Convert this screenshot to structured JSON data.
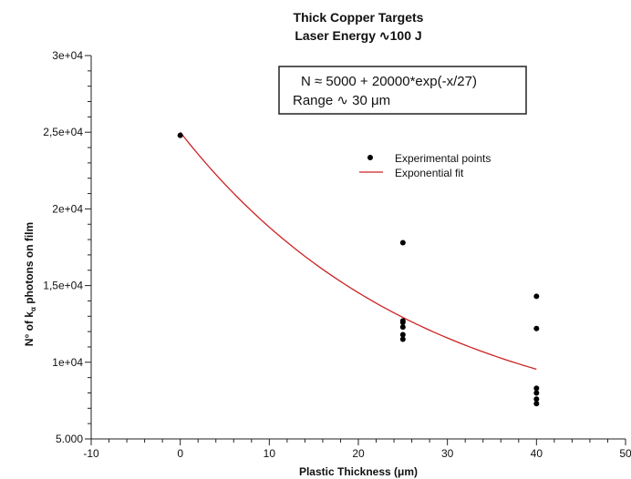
{
  "chart_data": {
    "type": "scatter",
    "title": "Thick Copper Targets",
    "subtitle": "Laser Energy ∿100 J",
    "xlabel": "Plastic Thickness (μm)",
    "ylabel_prefix": "N° of k",
    "ylabel_sub": "α",
    "ylabel_suffix": " photons on film",
    "xlim": [
      -10,
      50
    ],
    "ylim": [
      5000,
      30000
    ],
    "x_ticks": [
      -10,
      0,
      10,
      20,
      30,
      40,
      50
    ],
    "x_tick_labels": [
      "-10",
      "0",
      "10",
      "20",
      "30",
      "40",
      "50"
    ],
    "x_minor_step": 2,
    "y_ticks": [
      5000,
      10000,
      15000,
      20000,
      25000,
      30000
    ],
    "y_tick_labels": [
      "5.000",
      "1e+04",
      "1,5e+04",
      "2e+04",
      "2,5e+04",
      "3e+04"
    ],
    "y_minor_step": 1000,
    "grid": false,
    "legend_position": "top-right",
    "annotation": {
      "line1": "N ≈ 5000 + 20000*exp(-x/27)",
      "line2": "Range ∿ 30 μm"
    },
    "series": [
      {
        "name": "Experimental points",
        "kind": "scatter",
        "color": "#000000",
        "points": [
          [
            0,
            24800
          ],
          [
            25,
            17800
          ],
          [
            25,
            12700
          ],
          [
            25,
            12600
          ],
          [
            25,
            12300
          ],
          [
            25,
            11800
          ],
          [
            25,
            11500
          ],
          [
            40,
            14300
          ],
          [
            40,
            12200
          ],
          [
            40,
            8300
          ],
          [
            40,
            8000
          ],
          [
            40,
            7600
          ],
          [
            40,
            7300
          ]
        ]
      },
      {
        "name": "Exponential fit",
        "kind": "line",
        "color": "#cc2222",
        "model": {
          "a": 5000,
          "b": 20000,
          "c": 27
        },
        "x_range": [
          0,
          40
        ]
      }
    ]
  }
}
